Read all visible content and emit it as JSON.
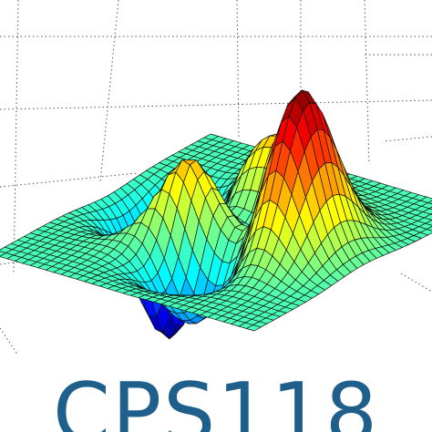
{
  "logo": {
    "text": "CPS118",
    "color": "#1f5f8b"
  },
  "figure": {
    "kind": "surface-3d",
    "colormap": "jet",
    "grid_style": "dotted",
    "background": "#ffffff"
  }
}
